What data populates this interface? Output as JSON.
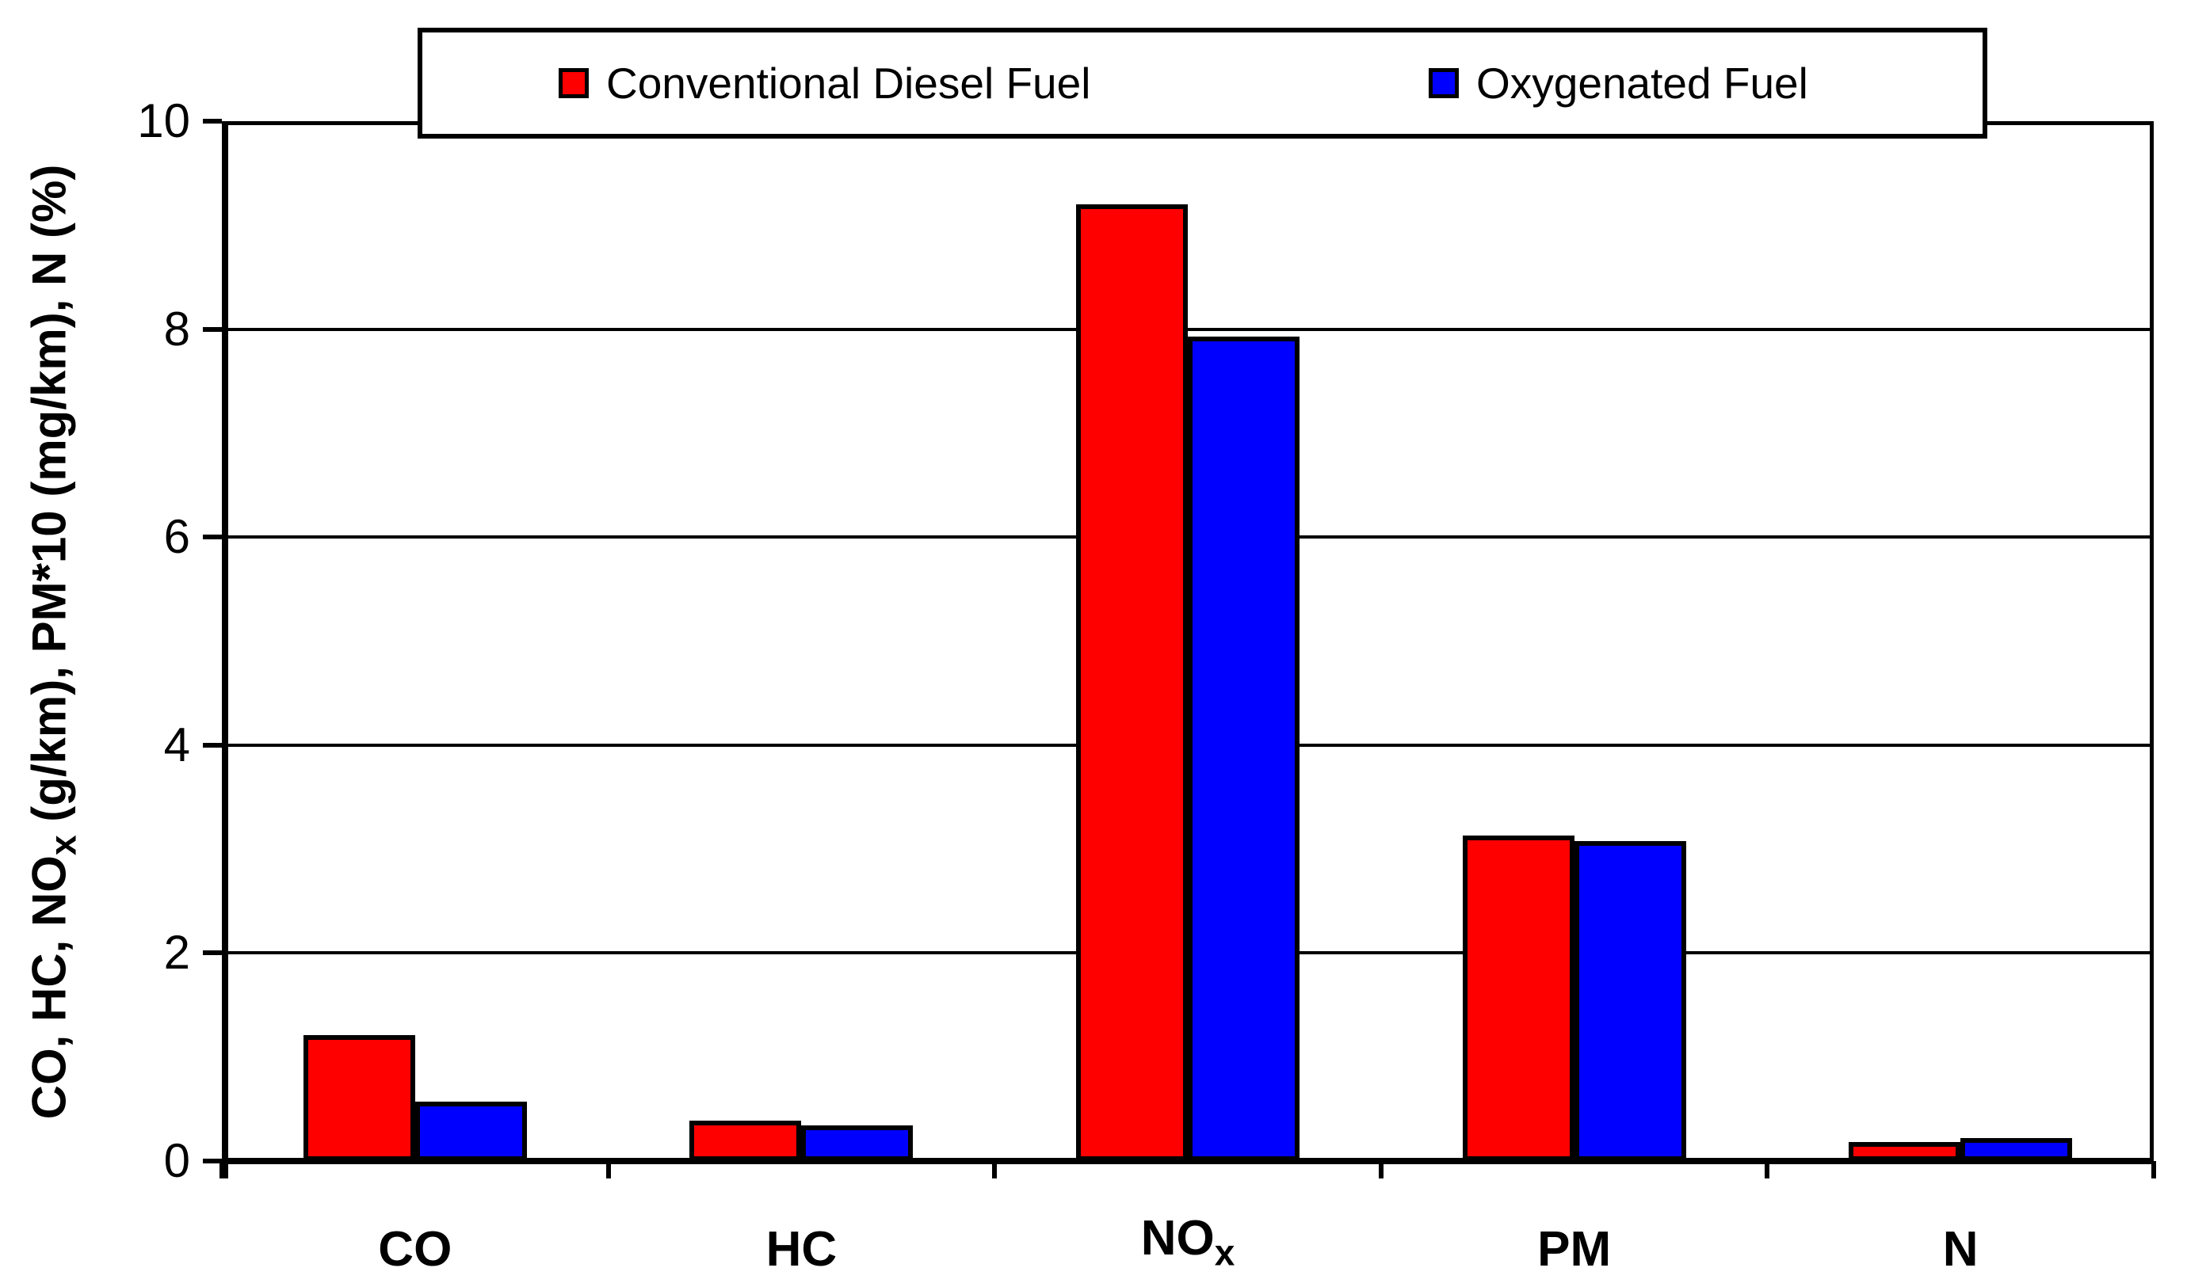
{
  "chart_data": {
    "type": "bar",
    "title": "",
    "categories": [
      "CO",
      "HC",
      "NOx",
      "PM",
      "N"
    ],
    "category_labels": [
      {
        "main": "CO"
      },
      {
        "main": "HC"
      },
      {
        "main": "NO",
        "sub": "x"
      },
      {
        "main": "PM"
      },
      {
        "main": "N"
      }
    ],
    "series": [
      {
        "name": "Conventional Diesel Fuel",
        "color": "#ff0000",
        "values": [
          1.21,
          0.39,
          9.2,
          3.13,
          0.18
        ]
      },
      {
        "name": "Oxygenated Fuel",
        "color": "#0000ff",
        "values": [
          0.57,
          0.34,
          7.93,
          3.08,
          0.22
        ]
      }
    ],
    "xlabel": "",
    "ylabel": "CO, HC, NOx (g/km), PM*10 (mg/km), N (%)",
    "ylabel_parts": {
      "pre": "CO, HC, NO",
      "sub": "x",
      "post": " (g/km), PM*10 (mg/km), N (%)"
    },
    "ylim": [
      0,
      10
    ],
    "y_ticks": [
      0,
      2,
      4,
      6,
      8,
      10
    ],
    "gridline_values": [
      2,
      4,
      6,
      8
    ],
    "grid": "horizontal",
    "legend_position": "top-center",
    "colors": {
      "series_conventional": "#ff0000",
      "series_oxygenated": "#0000ff",
      "axis": "#000000",
      "grid": "#000000",
      "text": "#000000",
      "background": "#ffffff"
    }
  }
}
